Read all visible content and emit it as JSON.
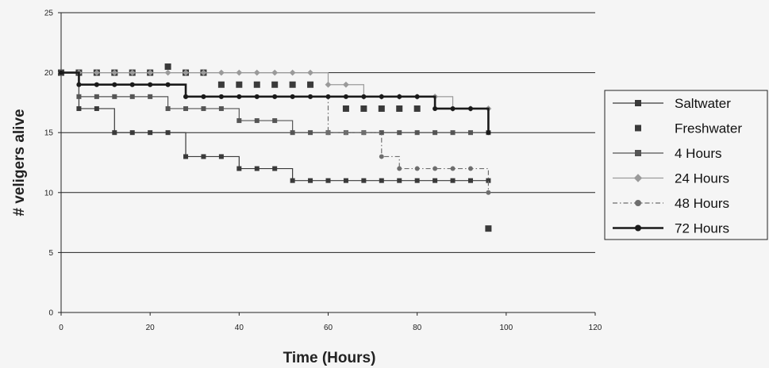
{
  "chart_data": {
    "type": "line",
    "title": "",
    "xlabel": "Time (Hours)",
    "ylabel": "# veligers alive",
    "xlim": [
      0,
      120
    ],
    "ylim": [
      0,
      25
    ],
    "xticks": [
      0,
      20,
      40,
      60,
      80,
      100,
      120
    ],
    "yticks": [
      0,
      5,
      10,
      15,
      20,
      25
    ],
    "grid": "horizontal",
    "legend_position": "right",
    "series": [
      {
        "name": "Saltwater",
        "color": "#3a3a3a",
        "marker": "square",
        "line": "solid-thin",
        "x": [
          0,
          4,
          8,
          12,
          16,
          20,
          24,
          28,
          32,
          36,
          40,
          44,
          48,
          52,
          56,
          60,
          64,
          68,
          72,
          76,
          80,
          84,
          88,
          92,
          96
        ],
        "y": [
          20,
          17,
          17,
          15,
          15,
          15,
          15,
          13,
          13,
          13,
          12,
          12,
          12,
          11,
          11,
          11,
          11,
          11,
          11,
          11,
          11,
          11,
          11,
          11,
          11
        ]
      },
      {
        "name": "Freshwater",
        "color": "#3a3a3a",
        "marker": "square",
        "line": "none",
        "x": [
          0,
          4,
          8,
          12,
          16,
          20,
          24,
          28,
          32,
          36,
          40,
          44,
          48,
          52,
          56,
          64,
          68,
          72,
          76,
          80,
          96
        ],
        "y": [
          20,
          20,
          20,
          20,
          20,
          20,
          20.5,
          20,
          20,
          19,
          19,
          19,
          19,
          19,
          19,
          17,
          17,
          17,
          17,
          17,
          7
        ]
      },
      {
        "name": "4 Hours",
        "color": "#555555",
        "marker": "square",
        "line": "solid-thin",
        "x": [
          0,
          4,
          8,
          12,
          16,
          20,
          24,
          28,
          32,
          36,
          40,
          44,
          48,
          52,
          56,
          60,
          64,
          68,
          72,
          76,
          80,
          84,
          88,
          92,
          96
        ],
        "y": [
          20,
          18,
          18,
          18,
          18,
          18,
          17,
          17,
          17,
          17,
          16,
          16,
          16,
          15,
          15,
          15,
          15,
          15,
          15,
          15,
          15,
          15,
          15,
          15,
          15
        ]
      },
      {
        "name": "24 Hours",
        "color": "#9a9a9a",
        "marker": "diamond",
        "line": "solid-thin",
        "x": [
          0,
          4,
          8,
          12,
          16,
          20,
          24,
          28,
          32,
          36,
          40,
          44,
          48,
          52,
          56,
          60,
          64,
          68,
          72,
          76,
          80,
          84,
          88,
          92,
          96
        ],
        "y": [
          20,
          20,
          20,
          20,
          20,
          20,
          20,
          20,
          20,
          20,
          20,
          20,
          20,
          20,
          20,
          19,
          19,
          18,
          18,
          18,
          18,
          18,
          17,
          17,
          17
        ]
      },
      {
        "name": "48 Hours",
        "color": "#6e6e6e",
        "marker": "circle",
        "line": "dashdot",
        "x": [
          0,
          4,
          8,
          12,
          16,
          20,
          24,
          28,
          32,
          36,
          40,
          44,
          48,
          52,
          56,
          60,
          64,
          68,
          72,
          76,
          80,
          84,
          88,
          92,
          96
        ],
        "y": [
          20,
          19,
          19,
          19,
          19,
          19,
          19,
          18,
          18,
          18,
          18,
          18,
          18,
          18,
          18,
          15,
          15,
          15,
          13,
          12,
          12,
          12,
          12,
          12,
          10
        ]
      },
      {
        "name": "72 Hours",
        "color": "#1a1a1a",
        "marker": "circle",
        "line": "solid-thick",
        "x": [
          0,
          4,
          8,
          12,
          16,
          20,
          24,
          28,
          32,
          36,
          40,
          44,
          48,
          52,
          56,
          60,
          64,
          68,
          72,
          76,
          80,
          84,
          88,
          92,
          96
        ],
        "y": [
          20,
          19,
          19,
          19,
          19,
          19,
          19,
          18,
          18,
          18,
          18,
          18,
          18,
          18,
          18,
          18,
          18,
          18,
          18,
          18,
          18,
          17,
          17,
          17,
          15
        ]
      }
    ]
  }
}
